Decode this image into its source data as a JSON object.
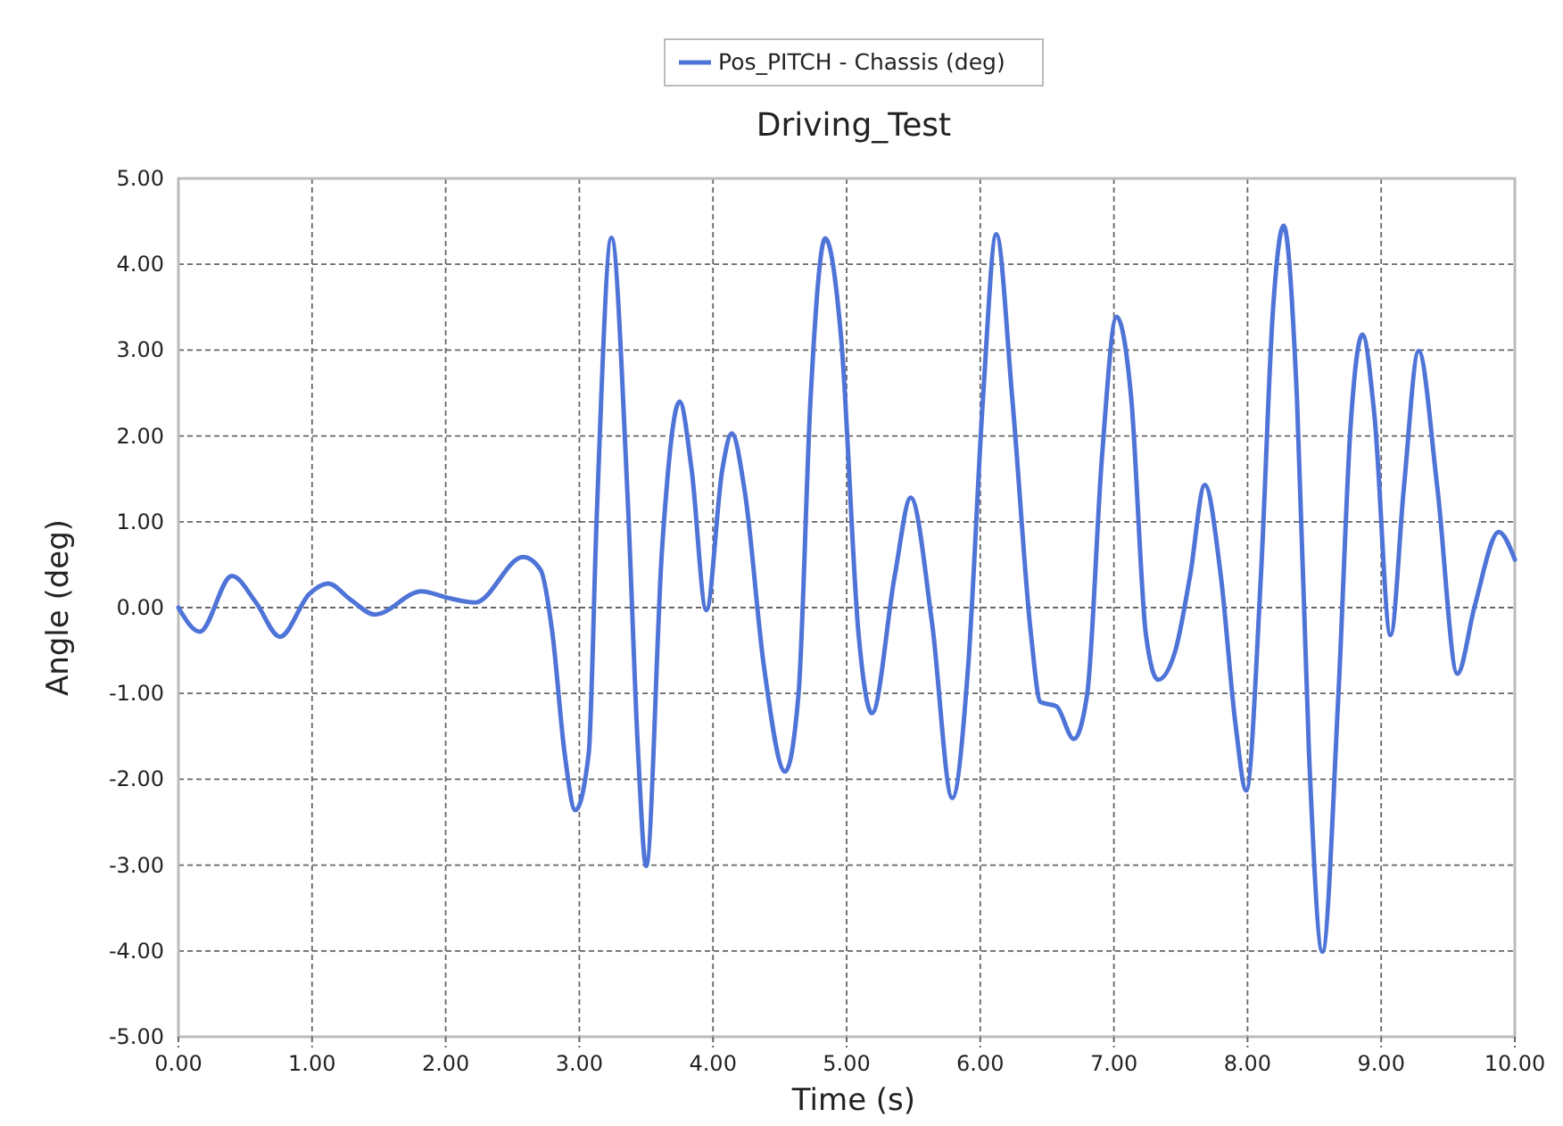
{
  "chart_data": {
    "type": "line",
    "title": "Driving_Test",
    "xlabel": "Time (s)",
    "ylabel": "Angle (deg)",
    "legend": "top",
    "grid": true,
    "line_style": "solid",
    "marker": "none",
    "xlim": [
      0,
      10
    ],
    "ylim": [
      -5,
      5
    ],
    "xticks": [
      {
        "value": 0,
        "label": "0.00"
      },
      {
        "value": 1,
        "label": "1.00"
      },
      {
        "value": 2,
        "label": "2.00"
      },
      {
        "value": 3,
        "label": "3.00"
      },
      {
        "value": 4,
        "label": "4.00"
      },
      {
        "value": 5,
        "label": "5.00"
      },
      {
        "value": 6,
        "label": "6.00"
      },
      {
        "value": 7,
        "label": "7.00"
      },
      {
        "value": 8,
        "label": "8.00"
      },
      {
        "value": 9,
        "label": "9.00"
      },
      {
        "value": 10,
        "label": "10.00"
      }
    ],
    "yticks": [
      {
        "value": -5,
        "label": "-5.00"
      },
      {
        "value": -4,
        "label": "-4.00"
      },
      {
        "value": -3,
        "label": "-3.00"
      },
      {
        "value": -2,
        "label": "-2.00"
      },
      {
        "value": -1,
        "label": "-1.00"
      },
      {
        "value": 0,
        "label": "0.00"
      },
      {
        "value": 1,
        "label": "1.00"
      },
      {
        "value": 2,
        "label": "2.00"
      },
      {
        "value": 3,
        "label": "3.00"
      },
      {
        "value": 4,
        "label": "4.00"
      },
      {
        "value": 5,
        "label": "5.00"
      }
    ],
    "series": [
      {
        "name": "Pos_PITCH - Chassis (deg)",
        "color": "#4f74d8",
        "x": [
          0,
          0.16,
          0.4,
          0.58,
          0.76,
          0.98,
          1.12,
          1.29,
          1.47,
          1.82,
          2.0,
          2.22,
          2.58,
          2.71,
          2.8,
          2.89,
          2.97,
          3.07,
          3.13,
          3.24,
          3.36,
          3.44,
          3.5,
          3.62,
          3.75,
          3.84,
          3.95,
          4.07,
          4.14,
          4.24,
          4.38,
          4.54,
          4.64,
          4.73,
          4.84,
          4.96,
          5.09,
          5.19,
          5.36,
          5.48,
          5.64,
          5.79,
          5.91,
          6.02,
          6.12,
          6.24,
          6.38,
          6.45,
          6.57,
          6.7,
          6.8,
          6.91,
          7.02,
          7.13,
          7.24,
          7.33,
          7.46,
          7.57,
          7.68,
          7.8,
          7.91,
          7.99,
          8.1,
          8.19,
          8.27,
          8.37,
          8.46,
          8.56,
          8.68,
          8.77,
          8.86,
          8.95,
          9.07,
          9.17,
          9.28,
          9.42,
          9.57,
          9.7,
          9.88,
          10.0
        ],
        "values": [
          0,
          -0.28,
          0.37,
          0.06,
          -0.34,
          0.16,
          0.28,
          0.09,
          -0.08,
          0.19,
          0.12,
          0.06,
          0.59,
          0.44,
          -0.32,
          -1.7,
          -2.36,
          -1.7,
          1.06,
          4.31,
          1.33,
          -1.7,
          -3.01,
          0.71,
          2.4,
          1.61,
          -0.03,
          1.61,
          2.03,
          1.33,
          -0.67,
          -1.91,
          -1.01,
          2.43,
          4.3,
          3.12,
          -0.32,
          -1.23,
          0.37,
          1.28,
          -0.19,
          -2.22,
          -0.67,
          2.43,
          4.35,
          2.43,
          -0.32,
          -1.1,
          -1.15,
          -1.53,
          -1.01,
          1.74,
          3.39,
          2.43,
          -0.32,
          -0.84,
          -0.5,
          0.37,
          1.43,
          0.37,
          -1.36,
          -2.13,
          0.37,
          3.46,
          4.45,
          2.43,
          -1.7,
          -4.01,
          -1.01,
          2.09,
          3.18,
          2.23,
          -0.32,
          1.4,
          2.99,
          1.4,
          -0.77,
          0.02,
          0.88,
          0.56
        ]
      }
    ]
  }
}
